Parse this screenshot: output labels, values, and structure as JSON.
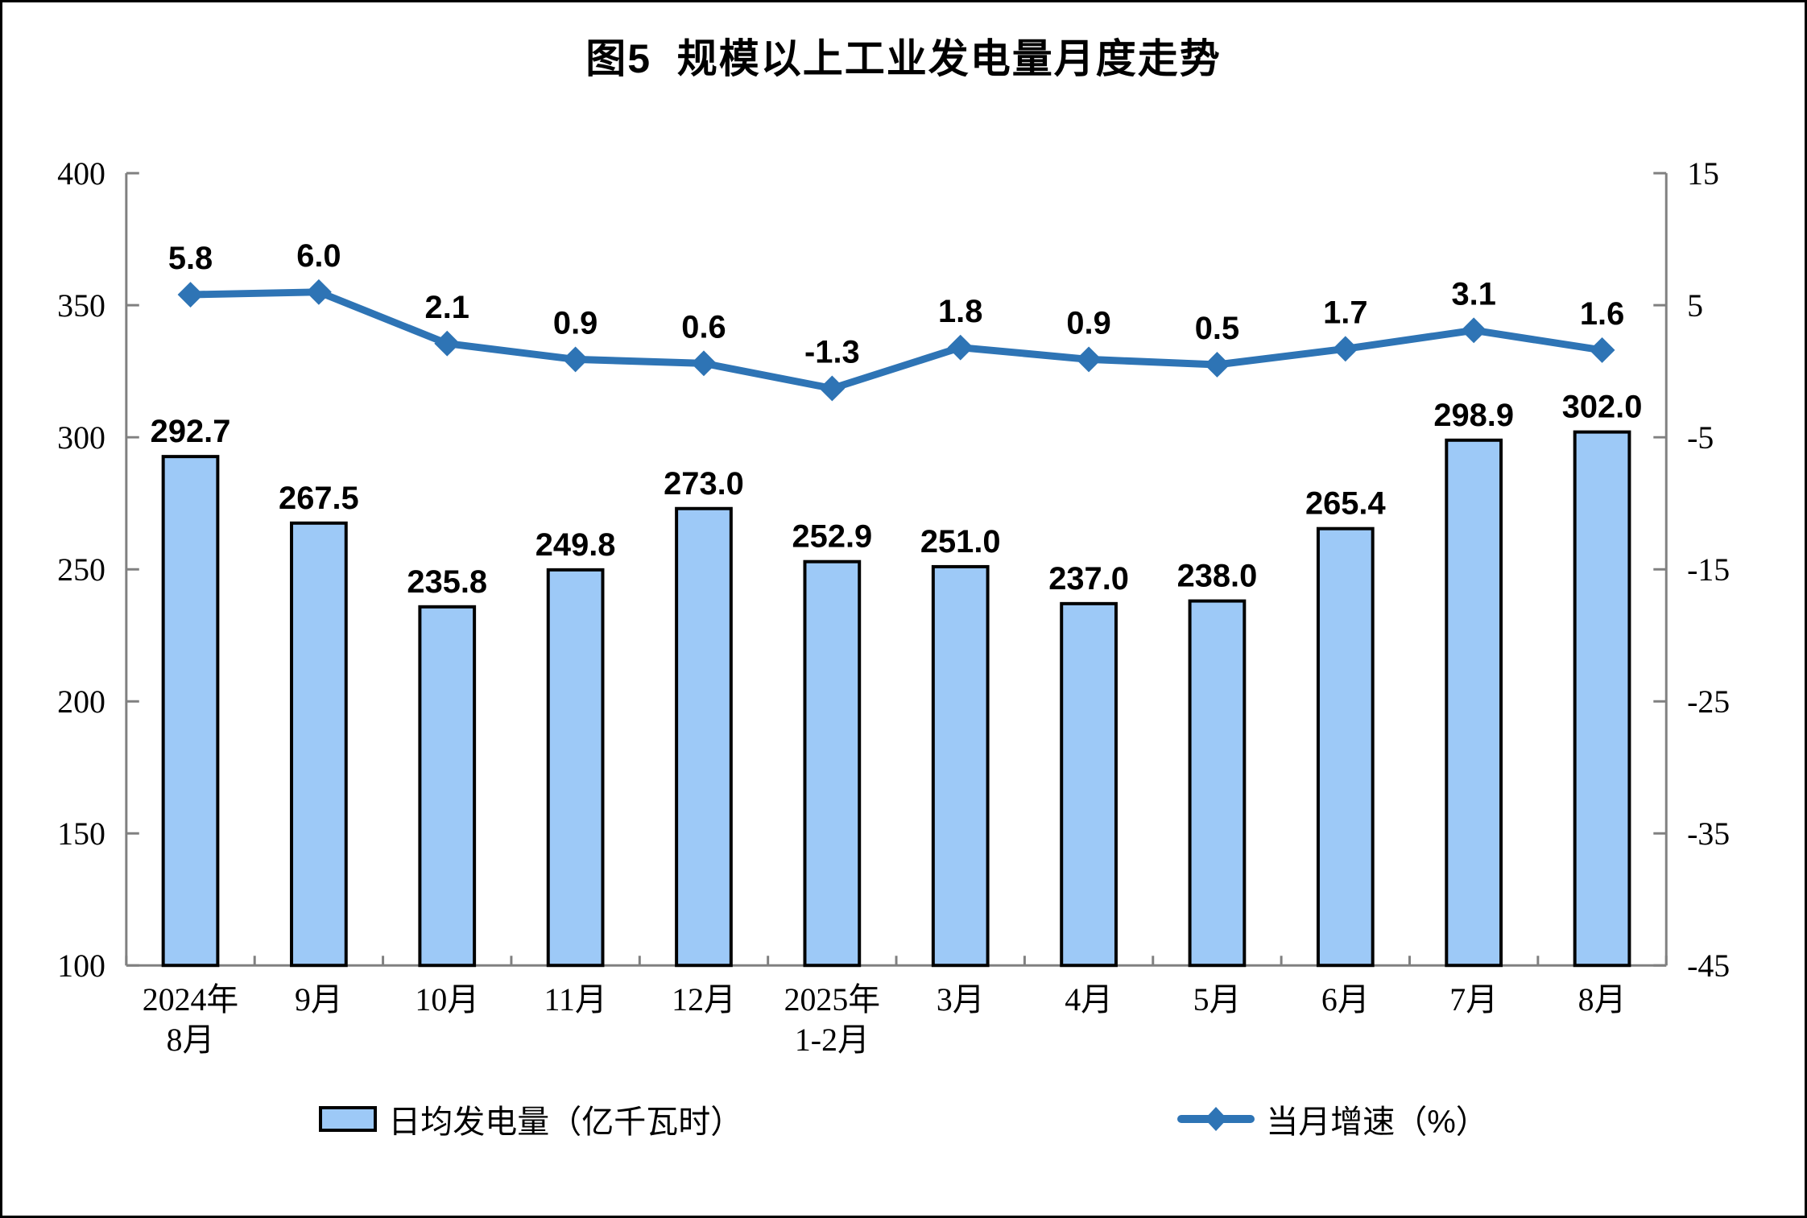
{
  "chart_data": {
    "type": "bar+line",
    "title": "图5  规模以上工业发电量月度走势",
    "categories": [
      "2024年\n8月",
      "9月",
      "10月",
      "11月",
      "12月",
      "2025年\n1-2月",
      "3月",
      "4月",
      "5月",
      "6月",
      "7月",
      "8月"
    ],
    "series": [
      {
        "name": "日均发电量（亿千瓦时）",
        "type": "bar",
        "axis": "left",
        "values": [
          292.7,
          267.5,
          235.8,
          249.8,
          273.0,
          252.9,
          251.0,
          237.0,
          238.0,
          265.4,
          298.9,
          302.0
        ]
      },
      {
        "name": "当月增速（%）",
        "type": "line",
        "axis": "right",
        "marker": "diamond",
        "values": [
          5.8,
          6.0,
          2.1,
          0.9,
          0.6,
          -1.3,
          1.8,
          0.9,
          0.5,
          1.7,
          3.1,
          1.6
        ]
      }
    ],
    "left_axis": {
      "min": 100,
      "max": 400,
      "ticks": [
        100,
        150,
        200,
        250,
        300,
        350,
        400
      ]
    },
    "right_axis": {
      "min": -45,
      "max": 15,
      "ticks": [
        -45,
        -35,
        -25,
        -15,
        -5,
        5,
        15
      ]
    },
    "grid": false,
    "legend_position": "bottom",
    "style": {
      "bar_fill": "#9DC9F7",
      "bar_border": "#000000",
      "line_color": "#2E74B5",
      "axis_color": "#808080",
      "text_color": "#000000",
      "background": "#FFFFFF"
    }
  }
}
